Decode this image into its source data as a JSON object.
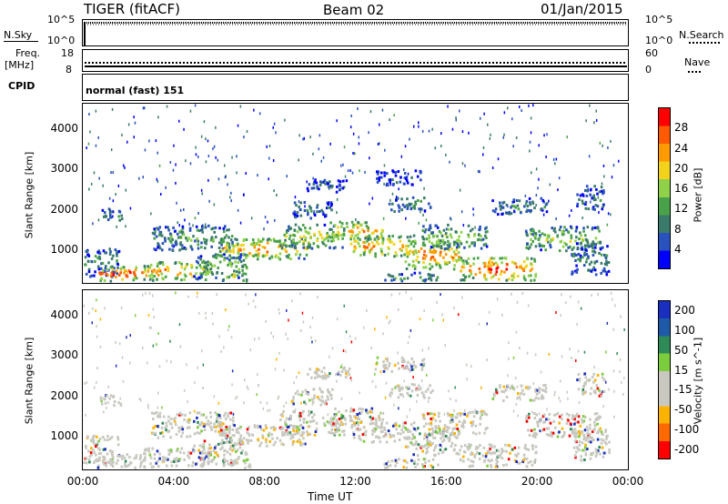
{
  "header": {
    "left_title": "TIGER (fitACF)",
    "center_title": "Beam 02",
    "right_title": "01/Jan/2015"
  },
  "status_panels": {
    "nsky": {
      "label": "N.Sky",
      "left_ticks": [
        "10^5",
        "10^0"
      ],
      "right_ticks": [
        "10^5",
        "10^0"
      ],
      "right_label": "N.Search"
    },
    "freq": {
      "label_top": "Freq.",
      "label_bottom": "[MHz]",
      "left_ticks": [
        "18",
        "8"
      ],
      "right_ticks": [
        "60",
        "0"
      ],
      "right_label": "Nave"
    },
    "cpid": {
      "label": "CPID",
      "value": "normal (fast) 151"
    }
  },
  "colors": {
    "power_scale": [
      "#0000ff",
      "#2a52be",
      "#3a7a6a",
      "#49a249",
      "#8fd24a",
      "#f2d21a",
      "#ff9a00",
      "#ff5a00",
      "#ff0000"
    ],
    "velocity_scale": [
      "#1a2fbf",
      "#1f5aa8",
      "#2e8b57",
      "#7ccd3c",
      "#c8c8c0",
      "#c8c8c0",
      "#ffb300",
      "#ff6a00",
      "#ff0000"
    ]
  },
  "chart_data": [
    {
      "type": "heatmap",
      "name": "power",
      "xlabel": "",
      "ylabel": "Slant Range [km]",
      "x_range": [
        "00:00",
        "00:00"
      ],
      "y_ticks": [
        "1000",
        "2000",
        "3000",
        "4000"
      ],
      "ylim": [
        180,
        4600
      ],
      "colorbar": {
        "label": "Power [dB]",
        "ticks": [
          "4",
          "8",
          "12",
          "16",
          "20",
          "24",
          "28"
        ],
        "range": [
          0,
          32
        ]
      }
    },
    {
      "type": "heatmap",
      "name": "velocity",
      "xlabel": "Time UT",
      "ylabel": "Slant Range [km]",
      "x_ticks": [
        "00:00",
        "04:00",
        "08:00",
        "12:00",
        "16:00",
        "20:00",
        "00:00"
      ],
      "y_ticks": [
        "1000",
        "2000",
        "3000",
        "4000"
      ],
      "ylim": [
        180,
        4600
      ],
      "colorbar": {
        "label": "Velocity [m s^-1]",
        "ticks": [
          "200",
          "100",
          "50",
          "15",
          "-15",
          "-50",
          "-100",
          "-200"
        ]
      }
    }
  ]
}
